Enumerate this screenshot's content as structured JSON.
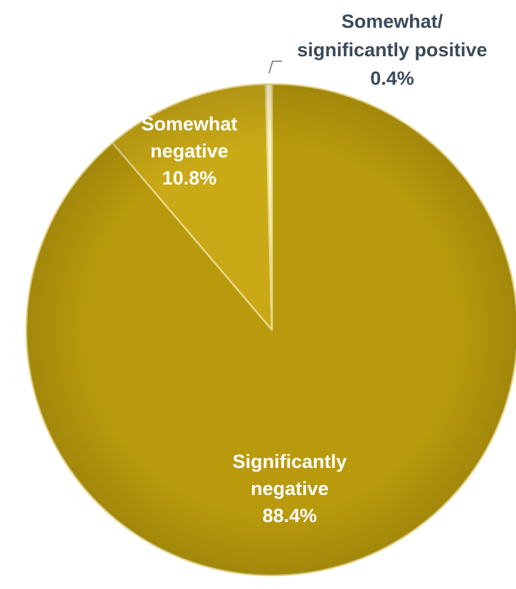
{
  "chart_data": {
    "type": "pie",
    "slices": [
      {
        "label_lines": [
          "Significantly",
          "negative",
          "88.4%"
        ],
        "value": 88.4,
        "color": "#b89a0c",
        "label_color": "#ffffff"
      },
      {
        "label_lines": [
          "Somewhat",
          "negative",
          "10.8%"
        ],
        "value": 10.8,
        "color": "#c9a916",
        "label_color": "#ffffff"
      },
      {
        "label_lines": [
          "Somewhat/",
          "significantly positive",
          "0.4%"
        ],
        "value": 0.4,
        "color": "#fff6c8",
        "label_color": "#3b4a59"
      }
    ],
    "title": "",
    "legend": "none"
  }
}
